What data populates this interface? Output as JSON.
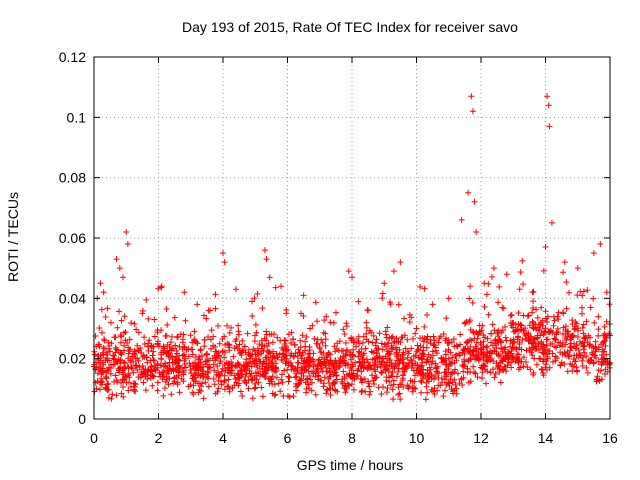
{
  "chart_data": {
    "type": "scatter",
    "title": "Day 193 of 2015, Rate Of TEC Index for receiver savo",
    "xlabel": "GPS time / hours",
    "ylabel": "ROTI / TECUs",
    "xlim": [
      0,
      16
    ],
    "ylim": [
      0,
      0.12
    ],
    "x_ticks": [
      0,
      2,
      4,
      6,
      8,
      10,
      12,
      14,
      16
    ],
    "x_tick_labels": [
      "0",
      "2",
      "4",
      "6",
      "8",
      "10",
      "12",
      "14",
      "16"
    ],
    "y_ticks": [
      0,
      0.02,
      0.04,
      0.06,
      0.08,
      0.1,
      0.12
    ],
    "y_tick_labels": [
      "0",
      "0.02",
      "0.04",
      "0.06",
      "0.08",
      "0.1",
      "0.12"
    ],
    "grid": true,
    "marker": "+",
    "series": [
      {
        "name": "ROTI",
        "color": "#ff0000",
        "note": "dense scatter; representative points",
        "x": [
          0.1,
          0.2,
          0.3,
          0.7,
          0.8,
          0.9,
          1.0,
          1.05,
          1.5,
          2.1,
          2.8,
          3.2,
          3.6,
          4.0,
          4.05,
          4.4,
          4.9,
          5.3,
          5.35,
          5.8,
          6.5,
          6.7,
          7.2,
          7.9,
          8.0,
          8.5,
          9.0,
          9.3,
          9.5,
          10.0,
          10.5,
          11.0,
          11.4,
          11.6,
          11.7,
          11.75,
          11.8,
          11.85,
          12.1,
          12.4,
          12.8,
          13.2,
          13.6,
          14.0,
          14.05,
          14.1,
          14.12,
          14.2,
          14.6,
          15.0,
          15.5,
          15.7,
          15.9
        ],
        "y": [
          0.04,
          0.045,
          0.042,
          0.053,
          0.05,
          0.047,
          0.062,
          0.058,
          0.035,
          0.044,
          0.042,
          0.038,
          0.036,
          0.055,
          0.052,
          0.043,
          0.039,
          0.056,
          0.053,
          0.044,
          0.041,
          0.03,
          0.034,
          0.049,
          0.047,
          0.036,
          0.045,
          0.049,
          0.052,
          0.03,
          0.038,
          0.04,
          0.066,
          0.075,
          0.107,
          0.102,
          0.072,
          0.062,
          0.045,
          0.05,
          0.048,
          0.043,
          0.042,
          0.057,
          0.107,
          0.104,
          0.097,
          0.065,
          0.052,
          0.05,
          0.055,
          0.058,
          0.042
        ]
      }
    ]
  }
}
